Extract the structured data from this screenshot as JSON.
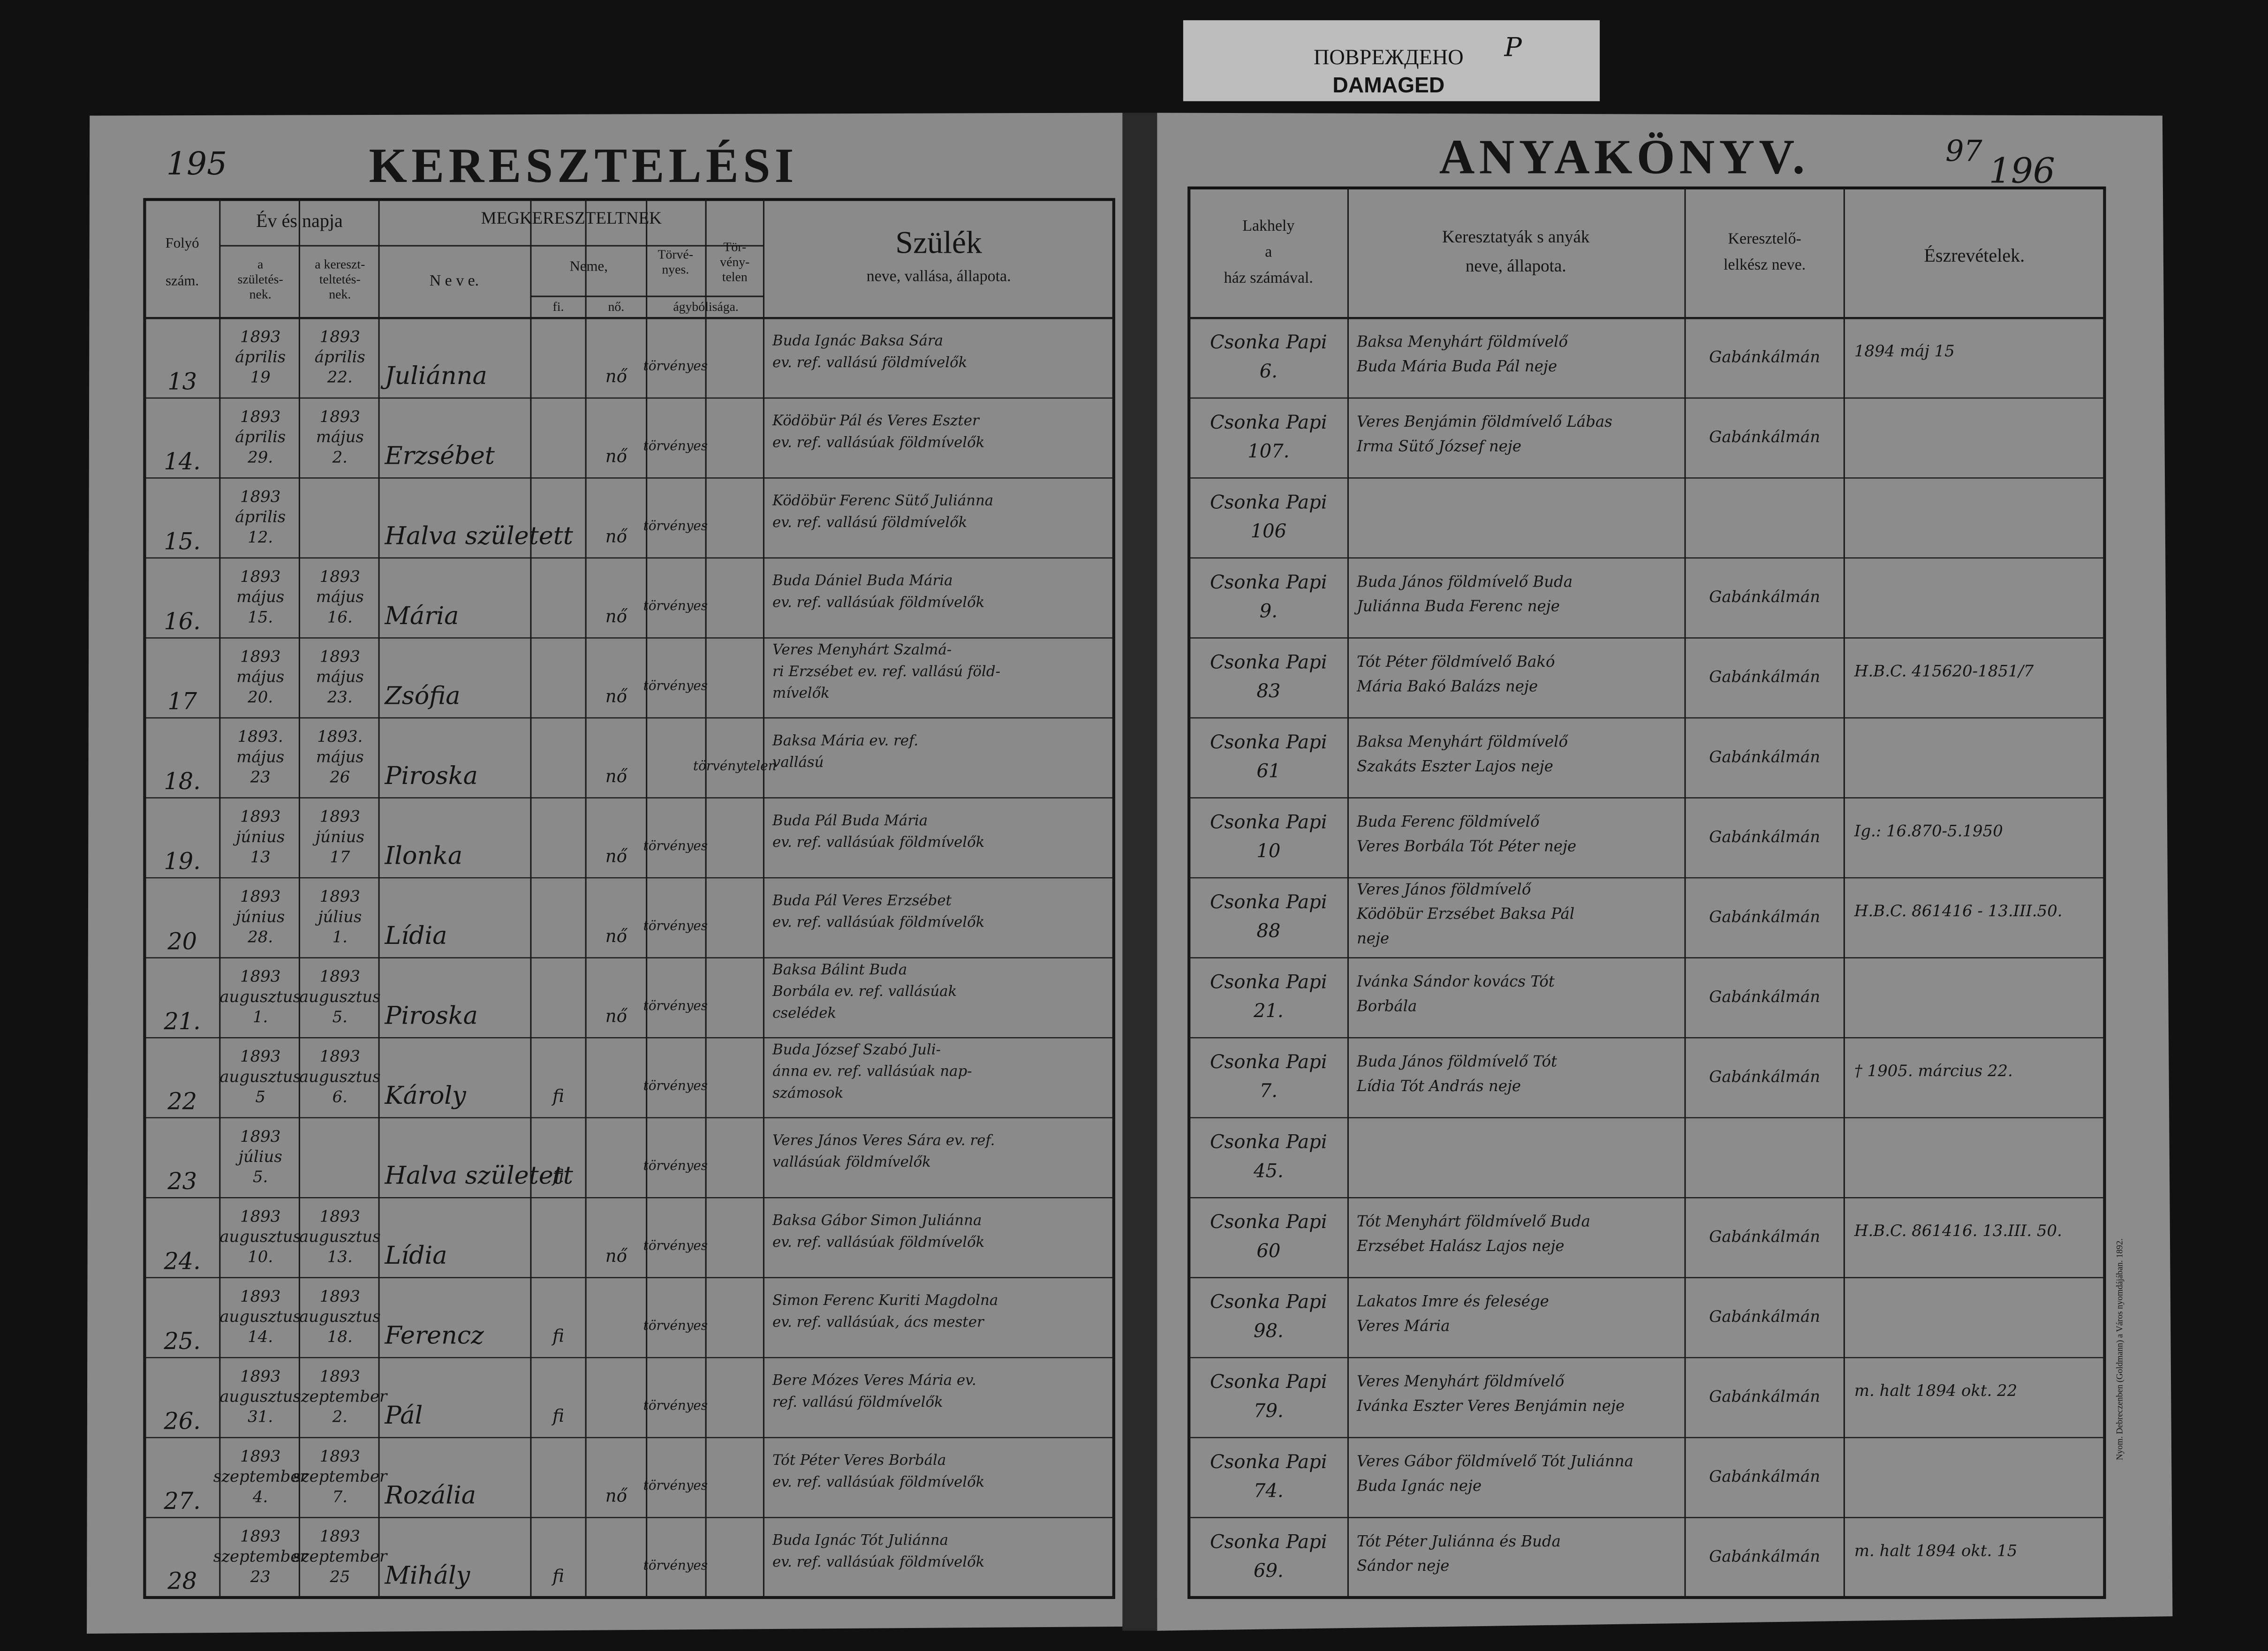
{
  "stamp": {
    "ru": "ПОВРЕЖДЕНО",
    "en": "DAMAGED",
    "mark": "P"
  },
  "left_page": {
    "page_number": "195",
    "title": "KERESZTELÉSI",
    "headers": {
      "folyo": [
        "Folyó",
        "szám."
      ],
      "ev": "Év és napja",
      "szul": [
        "a",
        "születés-",
        "nek."
      ],
      "ker": [
        "a kereszt-",
        "teltetés-",
        "nek."
      ],
      "megker": "MEGKERESZTELTNEK",
      "neve": "N e v e.",
      "neme": "Neme,",
      "fi": "fi.",
      "no": "nő.",
      "torv": [
        "Törvé-",
        "nyes."
      ],
      "torvtelen": [
        "Tör-",
        "vény-",
        "telen"
      ],
      "agy": "ágybólisága.",
      "szulek": "Szülék",
      "szulek_sub": "neve, vallása, állapota."
    }
  },
  "right_page": {
    "page_number": [
      "97",
      "196"
    ],
    "title": "ANYAKÖNYV.",
    "headers": {
      "lakhely": [
        "Lakhely",
        "a",
        "ház számával."
      ],
      "kereszt": [
        "Keresztatyák s anyák",
        "neve, állapota."
      ],
      "lelkesz": [
        "Keresztelő-",
        "lelkész neve."
      ],
      "eszrev": "Észrevételek."
    },
    "printer": "Nyom. Debreczenben (Goldmann) a Város nyomdájában. 1892."
  },
  "rows": [
    {
      "num": "13",
      "birth": [
        "1893",
        "április",
        "19"
      ],
      "baptism": [
        "1893",
        "április",
        "22."
      ],
      "name": "Juliánna",
      "fi": null,
      "no": "nő",
      "legit": "törvényes",
      "illegit": null,
      "parents": [
        "Buda Ignác Baksa Sára",
        "ev. ref. vallású földmívelők"
      ],
      "residence": [
        "Csonka Papi",
        "6."
      ],
      "godparents": [
        "Baksa Menyhárt földmívelő",
        "Buda Mária Buda Pál neje"
      ],
      "priest": "Gabánkálmán",
      "notes": "1894 máj 15"
    },
    {
      "num": "14.",
      "birth": [
        "1893",
        "április",
        "29."
      ],
      "baptism": [
        "1893",
        "május",
        "2."
      ],
      "name": "Erzsébet",
      "fi": null,
      "no": "nő",
      "legit": "törvényes",
      "illegit": null,
      "parents": [
        "Ködöbür Pál és Veres Eszter",
        "ev. ref. vallásúak földmívelők"
      ],
      "residence": [
        "Csonka Papi",
        "107."
      ],
      "godparents": [
        "Veres Benjámin földmívelő Lábas",
        "Irma Sütő József neje"
      ],
      "priest": "Gabánkálmán",
      "notes": null
    },
    {
      "num": "15.",
      "birth": [
        "1893",
        "április",
        "12."
      ],
      "baptism": null,
      "name": "Halva született",
      "fi": null,
      "no": "nő",
      "legit": "törvényes",
      "illegit": null,
      "parents": [
        "Ködöbür Ferenc Sütő Juliánna",
        "ev. ref. vallású földmívelők"
      ],
      "residence": [
        "Csonka Papi",
        "106"
      ],
      "godparents": null,
      "priest": null,
      "notes": null
    },
    {
      "num": "16.",
      "birth": [
        "1893",
        "május",
        "15."
      ],
      "baptism": [
        "1893",
        "május",
        "16."
      ],
      "name": "Mária",
      "fi": null,
      "no": "nő",
      "legit": "törvényes",
      "illegit": null,
      "parents": [
        "Buda Dániel Buda Mária",
        "ev. ref. vallásúak földmívelők"
      ],
      "residence": [
        "Csonka Papi",
        "9."
      ],
      "godparents": [
        "Buda János földmívelő Buda",
        "Juliánna Buda Ferenc neje"
      ],
      "priest": "Gabánkálmán",
      "notes": null
    },
    {
      "num": "17",
      "birth": [
        "1893",
        "május",
        "20."
      ],
      "baptism": [
        "1893",
        "május",
        "23."
      ],
      "name": "Zsófia",
      "fi": null,
      "no": "nő",
      "legit": "törvényes",
      "illegit": null,
      "parents": [
        "Veres Menyhárt Szalmá-",
        "ri Erzsébet ev. ref. vallású föld-",
        "mívelők"
      ],
      "residence": [
        "Csonka Papi",
        "83"
      ],
      "godparents": [
        "Tót Péter földmívelő Bakó",
        "Mária Bakó Balázs neje"
      ],
      "priest": "Gabánkálmán",
      "notes": "H.B.C. 415620-1851/7"
    },
    {
      "num": "18.",
      "birth": [
        "1893.",
        "május",
        "23"
      ],
      "baptism": [
        "1893.",
        "május",
        "26"
      ],
      "name": "Piroska",
      "fi": null,
      "no": "nő",
      "legit": null,
      "illegit": "törvénytelen",
      "parents": [
        "Baksa Mária ev. ref.",
        "vallású"
      ],
      "residence": [
        "Csonka Papi",
        "61"
      ],
      "godparents": [
        "Baksa Menyhárt földmívelő",
        "Szakáts Eszter Lajos neje"
      ],
      "priest": "Gabánkálmán",
      "notes": null
    },
    {
      "num": "19.",
      "birth": [
        "1893",
        "június",
        "13"
      ],
      "baptism": [
        "1893",
        "június",
        "17"
      ],
      "name": "Ilonka",
      "fi": null,
      "no": "nő",
      "legit": "törvényes",
      "illegit": null,
      "parents": [
        "Buda Pál Buda Mária",
        "ev. ref. vallásúak földmívelők"
      ],
      "residence": [
        "Csonka Papi",
        "10"
      ],
      "godparents": [
        "Buda Ferenc földmívelő",
        "Veres Borbála Tót Péter neje"
      ],
      "priest": "Gabánkálmán",
      "notes": "Ig.: 16.870-5.1950"
    },
    {
      "num": "20",
      "birth": [
        "1893",
        "június",
        "28."
      ],
      "baptism": [
        "1893",
        "július",
        "1."
      ],
      "name": "Lídia",
      "fi": null,
      "no": "nő",
      "legit": "törvényes",
      "illegit": null,
      "parents": [
        "Buda Pál Veres Erzsébet",
        "ev. ref. vallásúak földmívelők"
      ],
      "residence": [
        "Csonka Papi",
        "88"
      ],
      "godparents": [
        "Veres János földmívelő",
        "Ködöbür Erzsébet Baksa Pál",
        "neje"
      ],
      "priest": "Gabánkálmán",
      "notes": "H.B.C. 861416 - 13.III.50."
    },
    {
      "num": "21.",
      "birth": [
        "1893",
        "augusztus",
        "1."
      ],
      "baptism": [
        "1893",
        "augusztus",
        "5."
      ],
      "name": "Piroska",
      "fi": null,
      "no": "nő",
      "legit": "törvényes",
      "illegit": null,
      "parents": [
        "Baksa Bálint Buda",
        "Borbála ev. ref. vallásúak",
        "cselédek"
      ],
      "residence": [
        "Csonka Papi",
        "21."
      ],
      "godparents": [
        "Ivánka Sándor kovács Tót",
        "Borbála"
      ],
      "priest": "Gabánkálmán",
      "notes": null
    },
    {
      "num": "22",
      "birth": [
        "1893",
        "augusztus",
        "5"
      ],
      "baptism": [
        "1893",
        "augusztus",
        "6."
      ],
      "name": "Károly",
      "fi": "fi",
      "no": null,
      "legit": "törvényes",
      "illegit": null,
      "parents": [
        "Buda József Szabó Juli-",
        "ánna ev. ref. vallásúak nap-",
        "számosok"
      ],
      "residence": [
        "Csonka Papi",
        "7."
      ],
      "godparents": [
        "Buda János földmívelő Tót",
        "Lídia Tót András neje"
      ],
      "priest": "Gabánkálmán",
      "notes": "† 1905. március 22."
    },
    {
      "num": "23",
      "birth": [
        "1893",
        "július",
        "5."
      ],
      "baptism": null,
      "name": "Halva született",
      "fi": "fi",
      "no": null,
      "legit": "törvényes",
      "illegit": null,
      "parents": [
        "Veres János Veres Sára ev. ref.",
        "vallásúak földmívelők"
      ],
      "residence": [
        "Csonka Papi",
        "45."
      ],
      "godparents": null,
      "priest": null,
      "notes": null
    },
    {
      "num": "24.",
      "birth": [
        "1893",
        "augusztus",
        "10."
      ],
      "baptism": [
        "1893",
        "augusztus",
        "13."
      ],
      "name": "Lídia",
      "fi": null,
      "no": "nő",
      "legit": "törvényes",
      "illegit": null,
      "parents": [
        "Baksa Gábor Simon Juliánna",
        "ev. ref. vallásúak földmívelők"
      ],
      "residence": [
        "Csonka Papi",
        "60"
      ],
      "godparents": [
        "Tót Menyhárt földmívelő Buda",
        "Erzsébet Halász Lajos neje"
      ],
      "priest": "Gabánkálmán",
      "notes": "H.B.C. 861416. 13.III. 50."
    },
    {
      "num": "25.",
      "birth": [
        "1893",
        "augusztus",
        "14."
      ],
      "baptism": [
        "1893",
        "augusztus",
        "18."
      ],
      "name": "Ferencz",
      "fi": "fi",
      "no": null,
      "legit": "törvényes",
      "illegit": null,
      "parents": [
        "Simon Ferenc Kuriti Magdolna",
        "ev. ref. vallásúak, ács mester"
      ],
      "residence": [
        "Csonka Papi",
        "98."
      ],
      "godparents": [
        "Lakatos Imre és felesége",
        "Veres Mária"
      ],
      "priest": "Gabánkálmán",
      "notes": null
    },
    {
      "num": "26.",
      "birth": [
        "1893",
        "augusztus",
        "31."
      ],
      "baptism": [
        "1893",
        "szeptember",
        "2."
      ],
      "name": "Pál",
      "fi": "fi",
      "no": null,
      "legit": "törvényes",
      "illegit": null,
      "parents": [
        "Bere Mózes Veres Mária ev.",
        "ref. vallású földmívelők"
      ],
      "residence": [
        "Csonka Papi",
        "79."
      ],
      "godparents": [
        "Veres Menyhárt földmívelő",
        "Ivánka Eszter Veres Benjámin neje"
      ],
      "priest": "Gabánkálmán",
      "notes": "m. halt 1894 okt. 22"
    },
    {
      "num": "27.",
      "birth": [
        "1893",
        "szeptember",
        "4."
      ],
      "baptism": [
        "1893",
        "szeptember",
        "7."
      ],
      "name": "Rozália",
      "fi": null,
      "no": "nő",
      "legit": "törvényes",
      "illegit": null,
      "parents": [
        "Tót Péter Veres Borbála",
        "ev. ref. vallásúak földmívelők"
      ],
      "residence": [
        "Csonka Papi",
        "74."
      ],
      "godparents": [
        "Veres Gábor földmívelő Tót Juliánna",
        "Buda Ignác neje"
      ],
      "priest": "Gabánkálmán",
      "notes": null
    },
    {
      "num": "28",
      "birth": [
        "1893",
        "szeptember",
        "23"
      ],
      "baptism": [
        "1893",
        "szeptember",
        "25"
      ],
      "name": "Mihály",
      "fi": "fi",
      "no": null,
      "legit": "törvényes",
      "illegit": null,
      "parents": [
        "Buda Ignác Tót Juliánna",
        "ev. ref. vallásúak földmívelők"
      ],
      "residence": [
        "Csonka Papi",
        "69."
      ],
      "godparents": [
        "Tót Péter Juliánna és Buda",
        "Sándor neje"
      ],
      "priest": "Gabánkálmán",
      "notes": "m. halt 1894 okt. 15"
    }
  ]
}
